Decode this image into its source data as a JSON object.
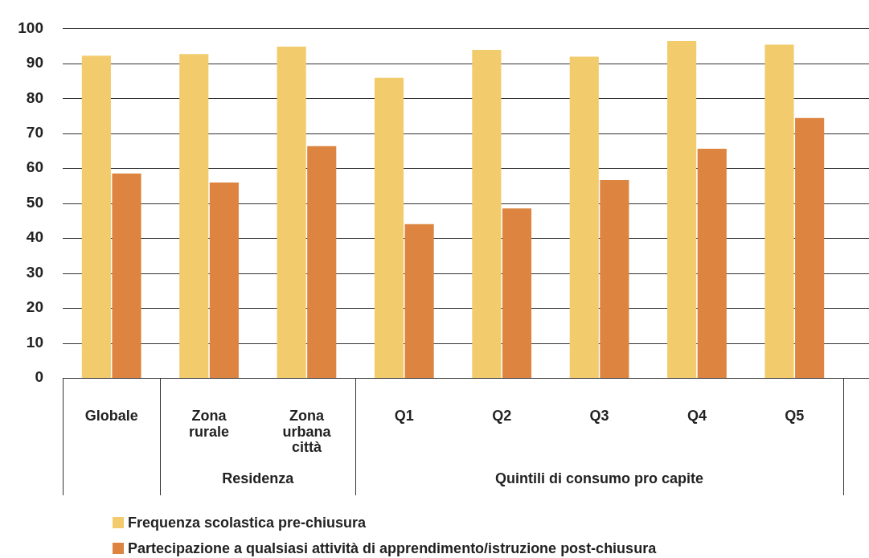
{
  "chart_data": {
    "type": "bar",
    "categories": [
      "Globale",
      "Zona rurale",
      "Zona urbana città",
      "Q1",
      "Q2",
      "Q3",
      "Q4",
      "Q5"
    ],
    "series": [
      {
        "name": "Frequenza scolastica pre-chiusura",
        "color": "#f2cb6c",
        "values": [
          92.2,
          92.7,
          94.8,
          85.9,
          93.9,
          91.9,
          96.4,
          95.4
        ]
      },
      {
        "name": "Partecipazione a qualsiasi attività di apprendimento/istruzione post-chiusura",
        "color": "#dd8440",
        "values": [
          58.5,
          55.9,
          66.3,
          44.0,
          48.5,
          56.6,
          65.6,
          74.4
        ]
      }
    ],
    "annotations": [
      "Residenza",
      "Quintili di consumo pro capite"
    ],
    "ylim": [
      0,
      100
    ],
    "yticks": [
      0,
      10,
      20,
      30,
      40,
      50,
      60,
      70,
      80,
      90,
      100
    ],
    "grid": "y",
    "legend": "bottom"
  }
}
